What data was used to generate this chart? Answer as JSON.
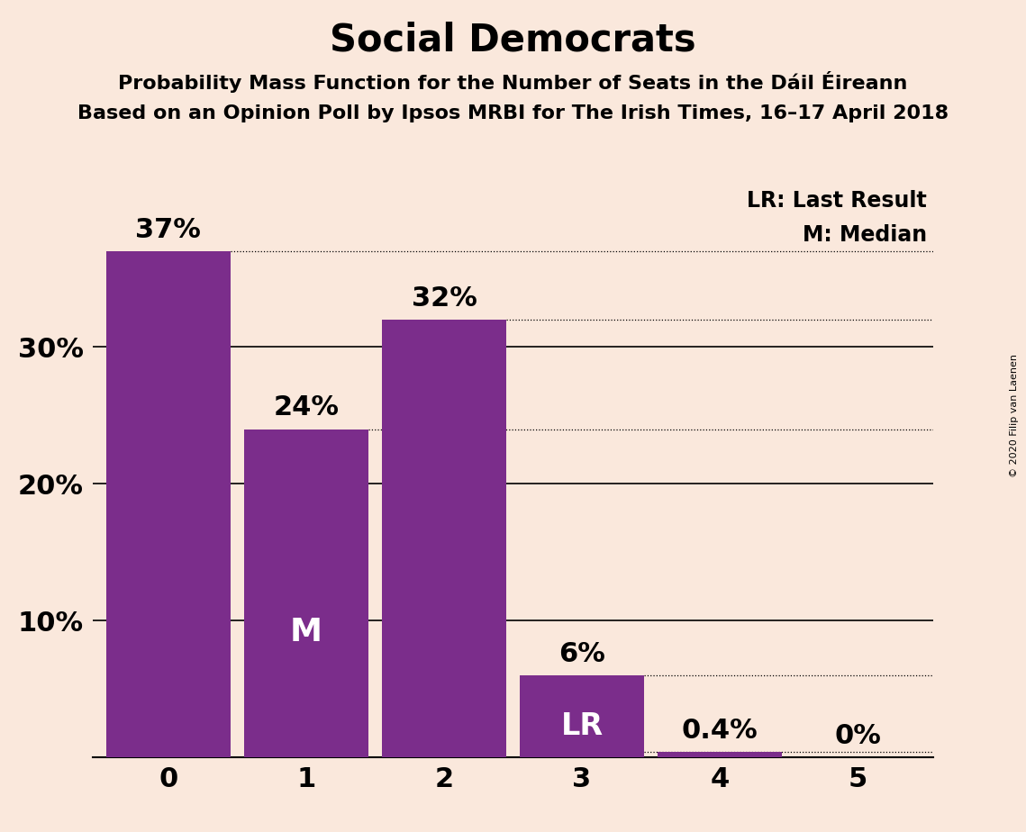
{
  "title": "Social Democrats",
  "subtitle1": "Probability Mass Function for the Number of Seats in the Dáil Éireann",
  "subtitle2": "Based on an Opinion Poll by Ipsos MRBI for The Irish Times, 16–17 April 2018",
  "copyright": "© 2020 Filip van Laenen",
  "categories": [
    0,
    1,
    2,
    3,
    4,
    5
  ],
  "values": [
    37,
    24,
    32,
    6,
    0.4,
    0
  ],
  "bar_color": "#7B2D8B",
  "background_color": "#FAE8DC",
  "bar_labels": [
    "37%",
    "24%",
    "32%",
    "6%",
    "0.4%",
    "0%"
  ],
  "median_bar": 1,
  "lr_bar": 3,
  "median_label": "M",
  "lr_label": "LR",
  "legend_lr": "LR: Last Result",
  "legend_m": "M: Median",
  "ylim": [
    0,
    42
  ],
  "solid_lines": [
    10,
    20,
    30
  ],
  "dotted_lines": [
    37,
    24,
    32,
    6,
    0.4
  ],
  "title_fontsize": 30,
  "subtitle_fontsize": 16,
  "axis_tick_fontsize": 22,
  "bar_label_fontsize": 22,
  "inside_label_fontsize": 26,
  "legend_fontsize": 17
}
